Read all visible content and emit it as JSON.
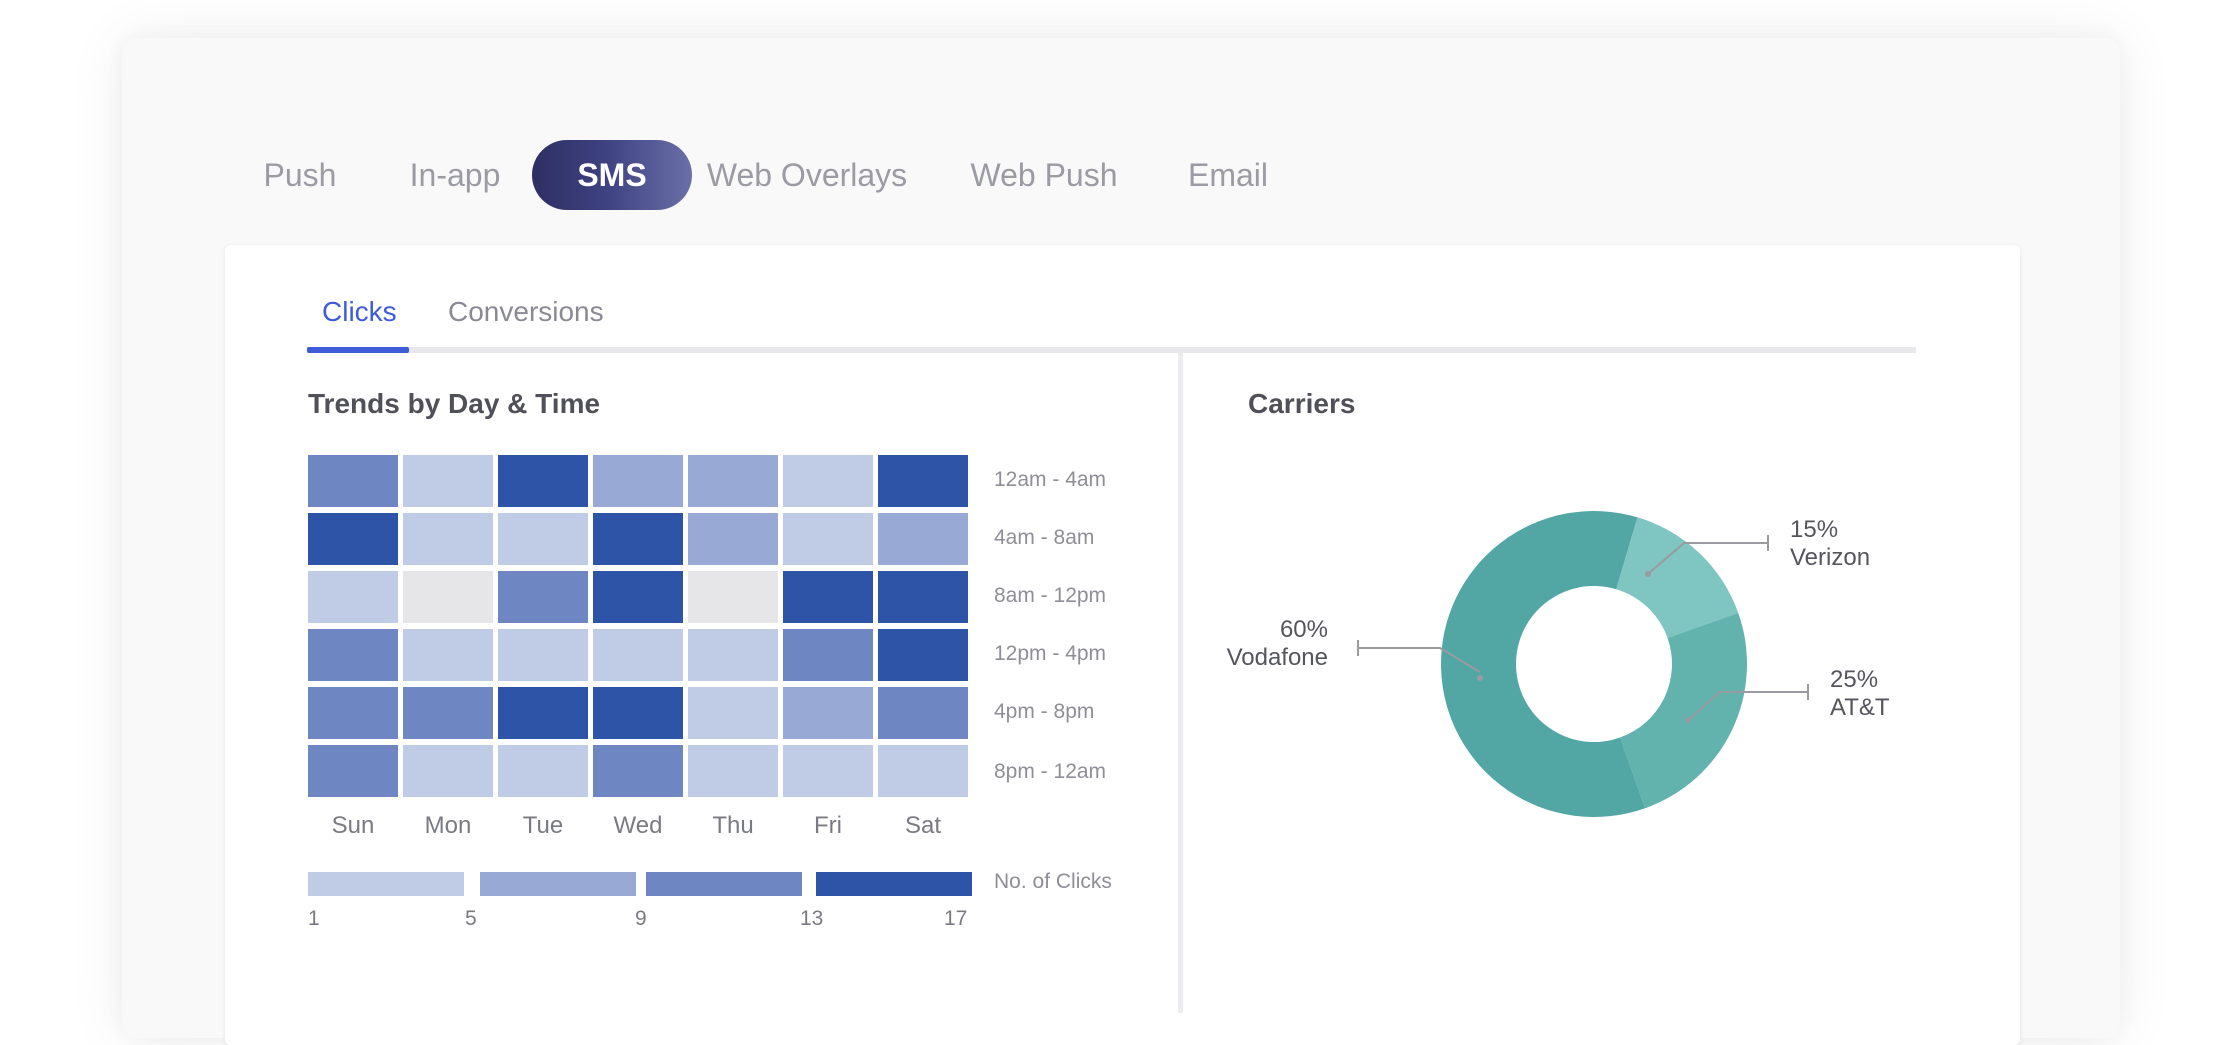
{
  "channel_tabs": [
    {
      "label": "Push",
      "active": false
    },
    {
      "label": "In-app",
      "active": false
    },
    {
      "label": "SMS",
      "active": true
    },
    {
      "label": "Web Overlays",
      "active": false
    },
    {
      "label": "Web Push",
      "active": false
    },
    {
      "label": "Email",
      "active": false
    }
  ],
  "subtabs": [
    {
      "label": "Clicks",
      "active": true
    },
    {
      "label": "Conversions",
      "active": false
    }
  ],
  "trends": {
    "title": "Trends by Day & Time",
    "days": [
      "Sun",
      "Mon",
      "Tue",
      "Wed",
      "Thu",
      "Fri",
      "Sat"
    ],
    "time_slots": [
      "12am - 4am",
      "4am - 8am",
      "8am - 12pm",
      "12pm - 4pm",
      "4pm - 8pm",
      "8pm - 12am"
    ],
    "levels": [
      [
        3,
        1,
        4,
        2,
        2,
        1,
        4
      ],
      [
        4,
        1,
        1,
        4,
        2,
        1,
        2
      ],
      [
        1,
        0,
        3,
        4,
        0,
        4,
        4
      ],
      [
        3,
        1,
        1,
        1,
        1,
        3,
        4
      ],
      [
        3,
        3,
        4,
        4,
        1,
        2,
        3
      ],
      [
        3,
        1,
        1,
        3,
        1,
        1,
        1
      ]
    ],
    "level_colors": [
      "#e6e6e9",
      "#c0cbe5",
      "#98a9d6",
      "#6e87c3",
      "#2e54a8"
    ],
    "legend": {
      "title": "No. of Clicks",
      "ticks": [
        "1",
        "5",
        "9",
        "13",
        "17"
      ]
    }
  },
  "carriers": {
    "title": "Carriers",
    "slices": [
      {
        "percent_label": "60%",
        "name": "Vodafone",
        "value": 60,
        "color": "#52a7a5"
      },
      {
        "percent_label": "15%",
        "name": "Verizon",
        "value": 15,
        "color": "#7fc5c1"
      },
      {
        "percent_label": "25%",
        "name": "AT&T",
        "value": 25,
        "color": "#62b2ae"
      }
    ]
  }
}
